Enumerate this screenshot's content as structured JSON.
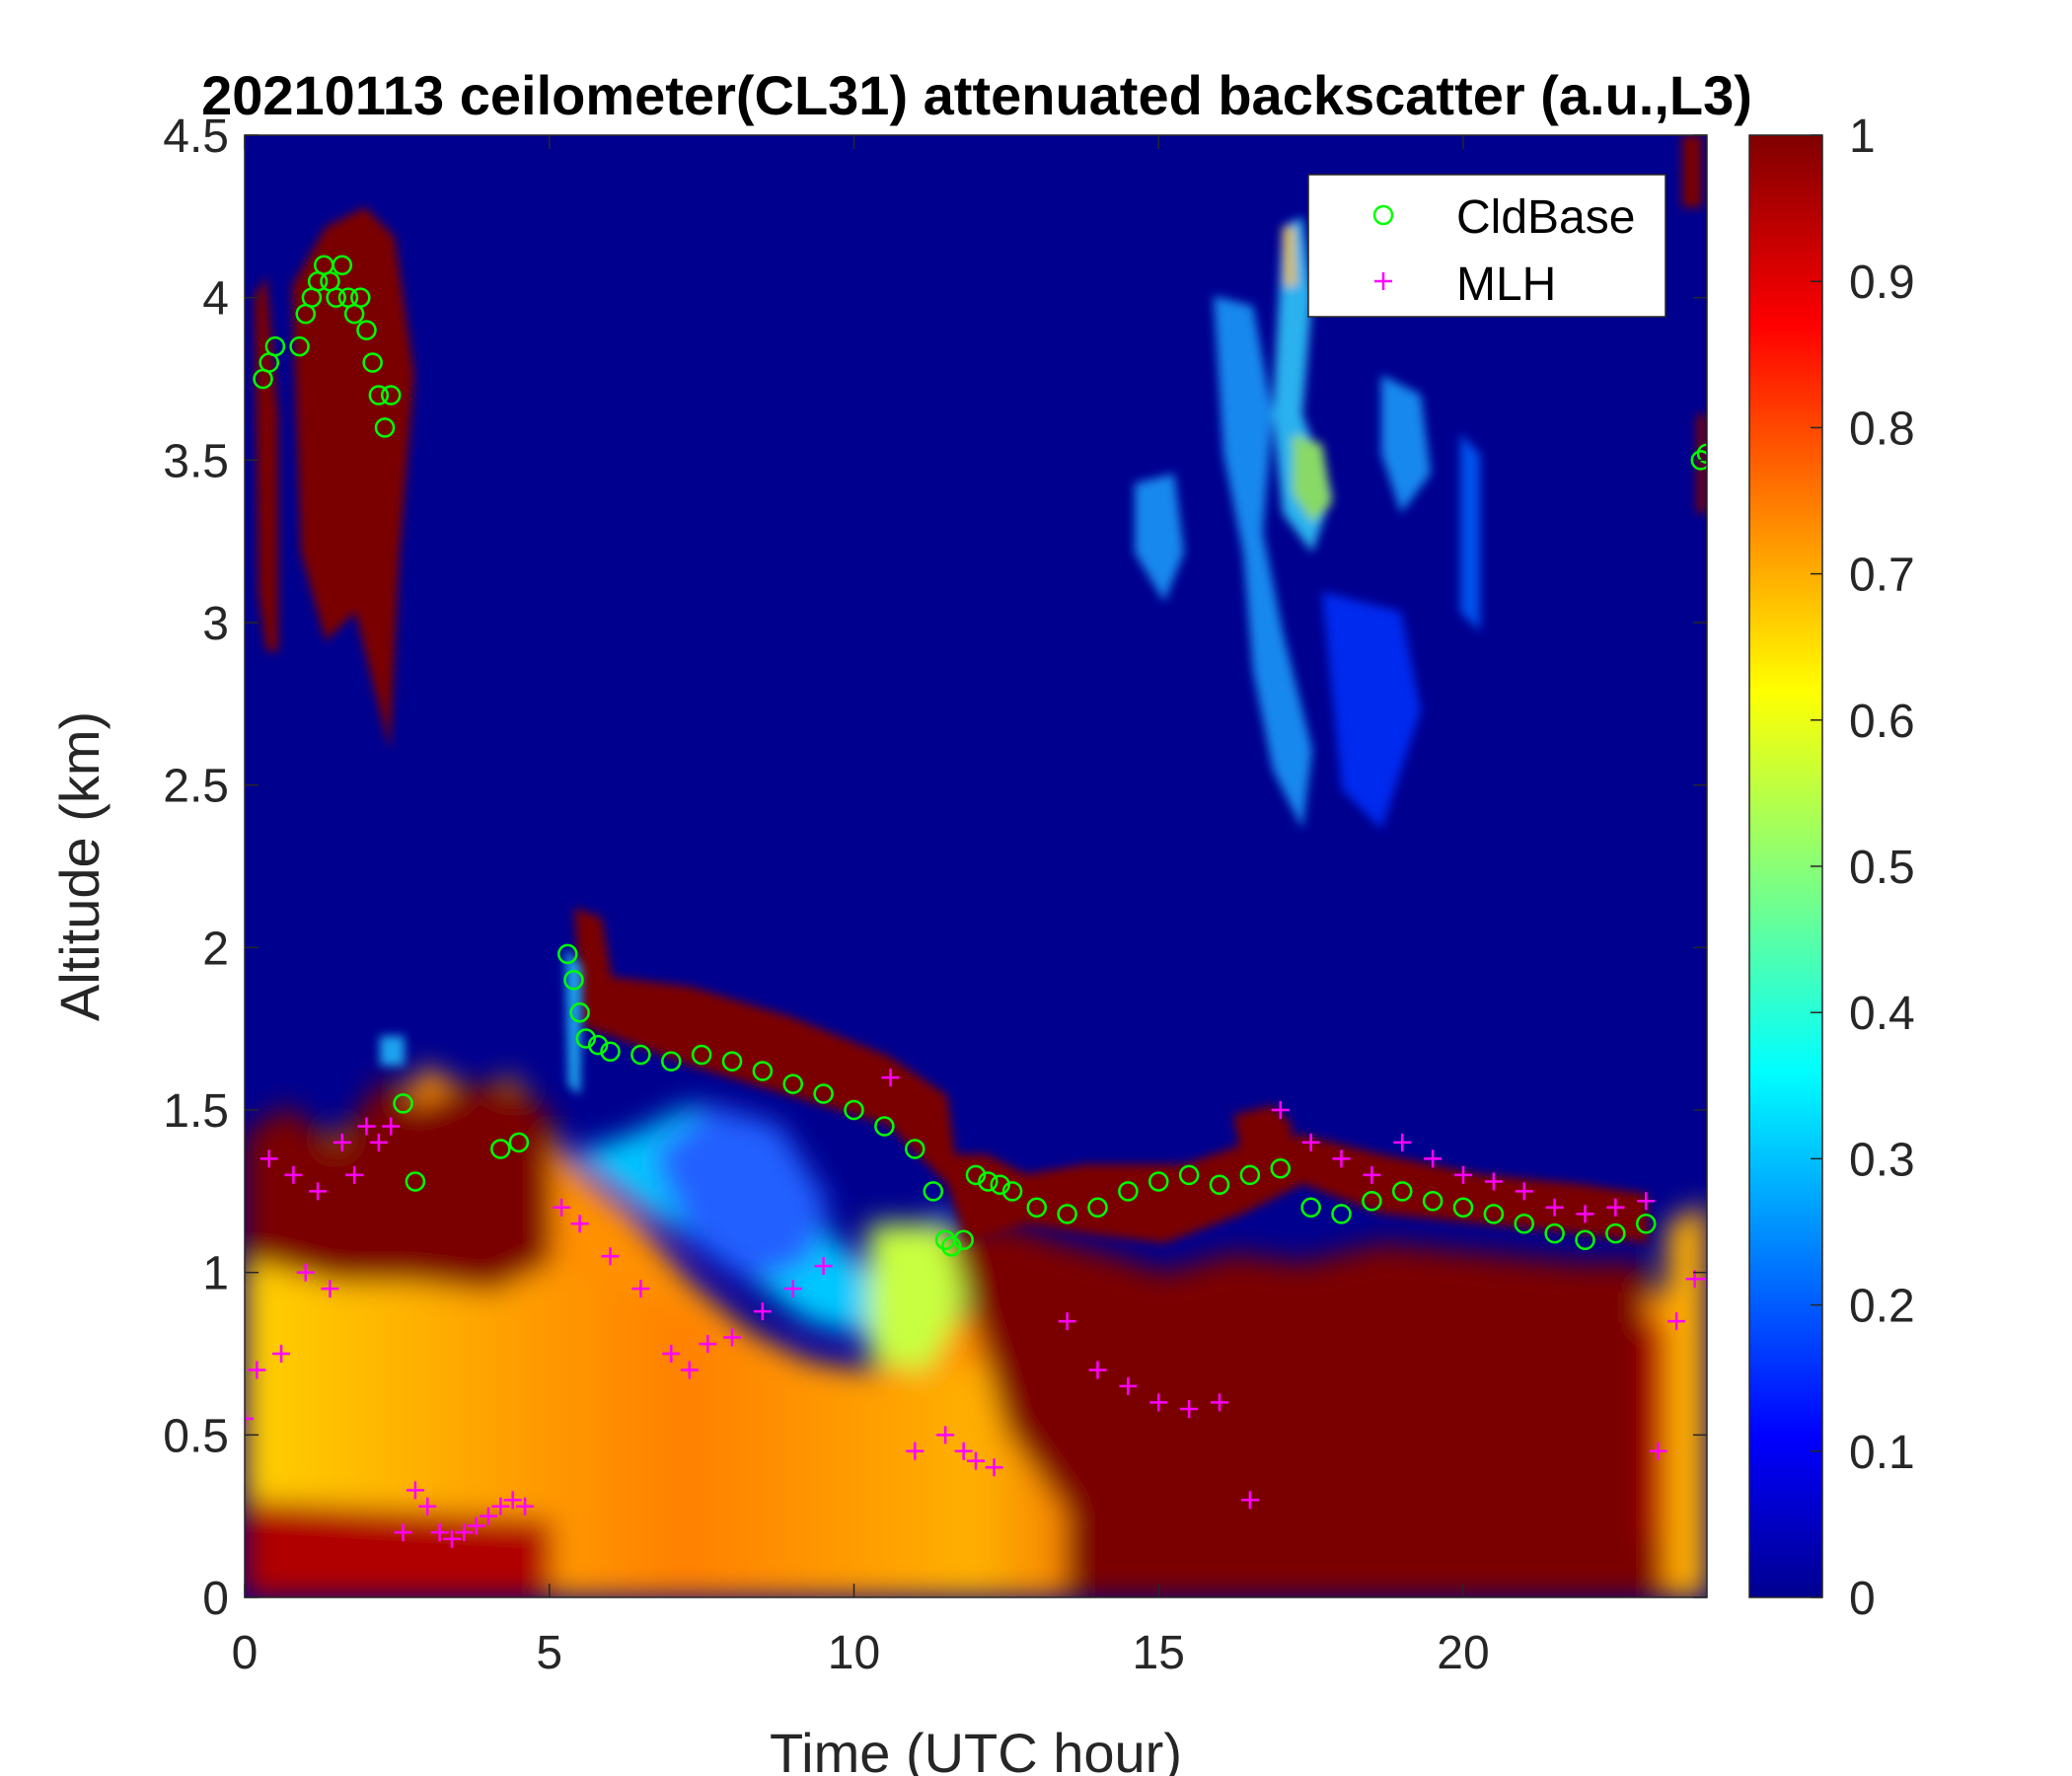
{
  "chart_data": {
    "type": "heatmap",
    "title": "20210113 ceilometer(CL31) attenuated backscatter (a.u.,L3)",
    "xlabel": "Time (UTC hour)",
    "ylabel": "Altitude (km)",
    "xlim": [
      0,
      24
    ],
    "ylim": [
      0,
      4.5
    ],
    "xticks": [
      0,
      5,
      10,
      15,
      20
    ],
    "xtick_labels": [
      "0",
      "5",
      "10",
      "15",
      "20"
    ],
    "yticks": [
      0,
      0.5,
      1,
      1.5,
      2,
      2.5,
      3,
      3.5,
      4,
      4.5
    ],
    "ytick_labels": [
      "0",
      "0.5",
      "1",
      "1.5",
      "2",
      "2.5",
      "3",
      "3.5",
      "4",
      "4.5"
    ],
    "colorbar": {
      "colormap": "jet",
      "clim": [
        0,
        1
      ],
      "ticks": [
        0,
        0.1,
        0.2,
        0.3,
        0.4,
        0.5,
        0.6,
        0.7,
        0.8,
        0.9,
        1
      ],
      "tick_labels": [
        "0",
        "0.1",
        "0.2",
        "0.3",
        "0.4",
        "0.5",
        "0.6",
        "0.7",
        "0.8",
        "0.9",
        "1"
      ]
    },
    "grid": false,
    "legend": {
      "position": "top-right",
      "entries": [
        {
          "label": "CldBase",
          "marker": "circle",
          "color": "#00ff00"
        },
        {
          "label": "MLH",
          "marker": "plus",
          "color": "#ff00ff"
        }
      ]
    },
    "series": [
      {
        "name": "CldBase",
        "marker": "circle",
        "color": "#00ff00",
        "x": [
          0.3,
          0.4,
          0.5,
          0.9,
          1.0,
          1.1,
          1.2,
          1.3,
          1.4,
          1.5,
          1.6,
          1.7,
          1.8,
          1.9,
          2.0,
          2.1,
          2.2,
          2.3,
          2.4,
          2.6,
          2.8,
          4.2,
          4.5,
          5.3,
          5.4,
          5.5,
          5.6,
          5.8,
          6.0,
          6.5,
          7.0,
          7.5,
          8.0,
          8.5,
          9.0,
          9.5,
          10.0,
          10.5,
          11.0,
          11.3,
          11.5,
          11.6,
          11.8,
          12.0,
          12.2,
          12.4,
          12.6,
          13.0,
          13.5,
          14.0,
          14.5,
          15.0,
          15.5,
          16.0,
          16.5,
          17.0,
          17.5,
          18.0,
          18.5,
          19.0,
          19.5,
          20.0,
          20.5,
          21.0,
          21.5,
          22.0,
          22.5,
          23.0,
          23.9,
          24.0
        ],
        "y": [
          3.75,
          3.8,
          3.85,
          3.85,
          3.95,
          4.0,
          4.05,
          4.1,
          4.05,
          4.0,
          4.1,
          4.0,
          3.95,
          4.0,
          3.9,
          3.8,
          3.7,
          3.6,
          3.7,
          1.52,
          1.28,
          1.38,
          1.4,
          1.98,
          1.9,
          1.8,
          1.72,
          1.7,
          1.68,
          1.67,
          1.65,
          1.67,
          1.65,
          1.62,
          1.58,
          1.55,
          1.5,
          1.45,
          1.38,
          1.25,
          1.1,
          1.08,
          1.1,
          1.3,
          1.28,
          1.27,
          1.25,
          1.2,
          1.18,
          1.2,
          1.25,
          1.28,
          1.3,
          1.27,
          1.3,
          1.32,
          1.2,
          1.18,
          1.22,
          1.25,
          1.22,
          1.2,
          1.18,
          1.15,
          1.12,
          1.1,
          1.12,
          1.15,
          3.5,
          3.52
        ]
      },
      {
        "name": "MLH",
        "marker": "plus",
        "color": "#ff00ff",
        "x": [
          0.0,
          0.2,
          0.4,
          0.6,
          0.8,
          1.0,
          1.2,
          1.4,
          1.6,
          1.8,
          2.0,
          2.2,
          2.4,
          2.6,
          2.8,
          3.0,
          3.2,
          3.4,
          3.6,
          3.8,
          4.0,
          4.2,
          4.4,
          4.6,
          5.2,
          5.5,
          6.0,
          6.5,
          7.0,
          7.3,
          7.6,
          8.0,
          8.5,
          9.0,
          9.5,
          10.6,
          11.0,
          11.5,
          11.8,
          12.0,
          12.3,
          13.5,
          14.0,
          14.5,
          15.0,
          15.5,
          16.0,
          16.5,
          17.0,
          17.5,
          18.0,
          18.5,
          19.0,
          19.5,
          20.0,
          20.5,
          21.0,
          21.5,
          22.0,
          22.5,
          23.0,
          23.2,
          23.5,
          23.8,
          24.0
        ],
        "y": [
          0.55,
          0.7,
          1.35,
          0.75,
          1.3,
          1.0,
          1.25,
          0.95,
          1.4,
          1.3,
          1.45,
          1.4,
          1.45,
          0.2,
          0.33,
          0.28,
          0.2,
          0.18,
          0.2,
          0.22,
          0.25,
          0.28,
          0.3,
          0.28,
          1.2,
          1.15,
          1.05,
          0.95,
          0.75,
          0.7,
          0.78,
          0.8,
          0.88,
          0.95,
          1.02,
          1.6,
          0.45,
          0.5,
          0.45,
          0.42,
          0.4,
          0.85,
          0.7,
          0.65,
          0.6,
          0.58,
          0.6,
          0.3,
          1.5,
          1.4,
          1.35,
          1.3,
          1.4,
          1.35,
          1.3,
          1.28,
          1.25,
          1.2,
          1.18,
          1.2,
          1.22,
          0.45,
          0.85,
          0.98,
          0.98
        ]
      }
    ]
  }
}
